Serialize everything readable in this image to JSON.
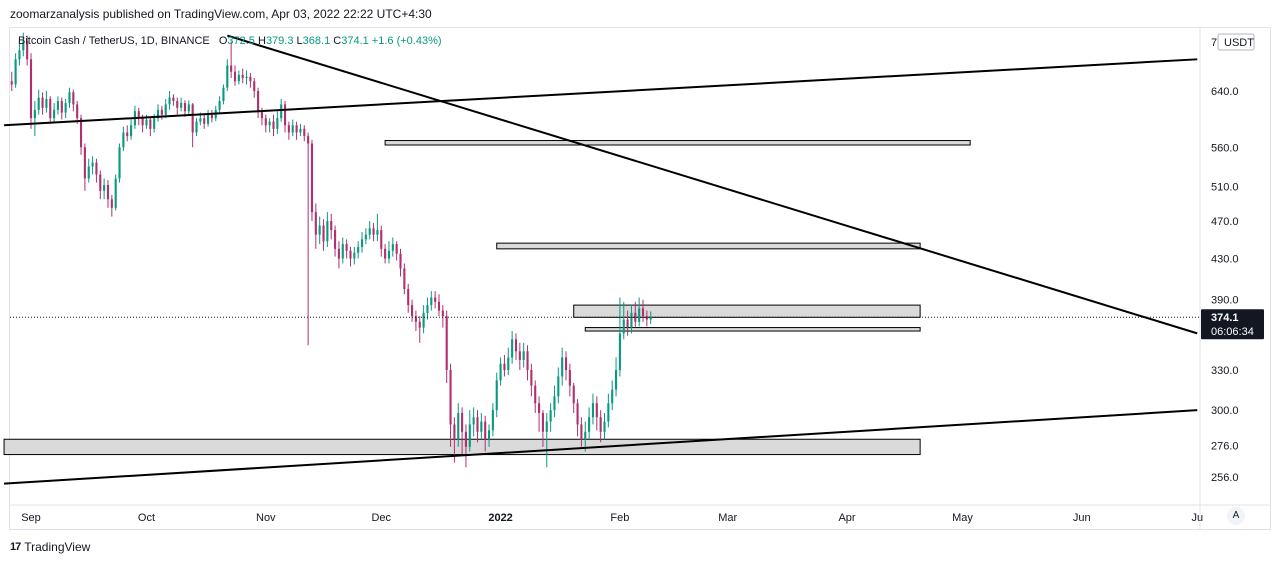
{
  "header": {
    "published_text": "zoomarzanalysis published on TradingView.com, Apr 03, 2022 22:22 UTC+4:30"
  },
  "legend": {
    "symbol": "Bitcoin Cash / TetherUS, 1D, BINANCE",
    "o_label": "O",
    "o_value": "372.5",
    "h_label": "H",
    "h_value": "379.3",
    "l_label": "L",
    "l_value": "368.1",
    "c_label": "C",
    "c_value": "374.1",
    "change": "+1.6 (+0.43%)"
  },
  "price_axis": {
    "currency": "USDT",
    "top_label": "7"
  },
  "price_tag": {
    "value": "374.1",
    "countdown": "06:06:34"
  },
  "footer": {
    "brand": "TradingView",
    "logo": "17"
  },
  "auto_button": "A",
  "colors": {
    "up": "#089981",
    "down": "#b0306e",
    "line": "#000000",
    "zone_fill": "#d6d6d6"
  },
  "chart_data": {
    "type": "candlestick",
    "title": "",
    "xlabel": "",
    "ylabel": "",
    "y_scale": "log",
    "ylim": [
      245,
      720
    ],
    "y_ticks": [
      640,
      560,
      510,
      470,
      430,
      390,
      330,
      300,
      276,
      256
    ],
    "y_tick_labels": [
      "640.0",
      "560.0",
      "510.0",
      "470.0",
      "430.0",
      "390.0",
      "330.0",
      "300.0",
      "276.0",
      "256.0"
    ],
    "x_range": [
      "2021-08-25",
      "2022-07-01"
    ],
    "x_ticks": [
      {
        "label": "Sep",
        "date": "2021-09-01"
      },
      {
        "label": "Oct",
        "date": "2021-10-01"
      },
      {
        "label": "Nov",
        "date": "2021-11-01"
      },
      {
        "label": "Dec",
        "date": "2021-12-01"
      },
      {
        "label": "2022",
        "date": "2022-01-01"
      },
      {
        "label": "Feb",
        "date": "2022-02-01"
      },
      {
        "label": "Mar",
        "date": "2022-03-01"
      },
      {
        "label": "Apr",
        "date": "2022-04-01"
      },
      {
        "label": "May",
        "date": "2022-05-01"
      },
      {
        "label": "Jun",
        "date": "2022-06-01"
      },
      {
        "label": "Ju",
        "date": "2022-07-01"
      }
    ],
    "last_price": 374.1,
    "candle_start": "2021-08-25",
    "candles": [
      [
        640,
        625,
        652,
        612
      ],
      [
        625,
        655,
        668,
        620
      ],
      [
        655,
        650,
        670,
        640
      ],
      [
        650,
        690,
        700,
        645
      ],
      [
        690,
        705,
        720,
        680
      ],
      [
        705,
        720,
        735,
        695
      ],
      [
        720,
        690,
        730,
        680
      ],
      [
        690,
        600,
        700,
        585
      ],
      [
        600,
        612,
        625,
        575
      ],
      [
        612,
        630,
        642,
        605
      ],
      [
        630,
        615,
        638,
        605
      ],
      [
        615,
        628,
        640,
        608
      ],
      [
        628,
        600,
        632,
        592
      ],
      [
        600,
        612,
        622,
        595
      ],
      [
        612,
        625,
        632,
        605
      ],
      [
        625,
        608,
        630,
        598
      ],
      [
        608,
        622,
        628,
        600
      ],
      [
        622,
        638,
        645,
        615
      ],
      [
        638,
        620,
        642,
        610
      ],
      [
        620,
        600,
        625,
        592
      ],
      [
        600,
        560,
        605,
        550
      ],
      [
        560,
        520,
        565,
        505
      ],
      [
        520,
        535,
        545,
        515
      ],
      [
        535,
        540,
        548,
        525
      ],
      [
        540,
        525,
        545,
        515
      ],
      [
        525,
        505,
        530,
        495
      ],
      [
        505,
        512,
        520,
        495
      ],
      [
        512,
        495,
        518,
        485
      ],
      [
        495,
        485,
        500,
        475
      ],
      [
        485,
        520,
        525,
        482
      ],
      [
        520,
        560,
        565,
        515
      ],
      [
        560,
        580,
        588,
        555
      ],
      [
        580,
        575,
        590,
        568
      ],
      [
        575,
        590,
        598,
        570
      ],
      [
        590,
        610,
        618,
        585
      ],
      [
        610,
        600,
        615,
        590
      ],
      [
        600,
        590,
        605,
        580
      ],
      [
        590,
        598,
        605,
        585
      ],
      [
        598,
        585,
        602,
        575
      ],
      [
        585,
        600,
        606,
        580
      ],
      [
        600,
        612,
        620,
        595
      ],
      [
        612,
        605,
        618,
        598
      ],
      [
        605,
        620,
        628,
        600
      ],
      [
        620,
        630,
        640,
        612
      ],
      [
        630,
        625,
        635,
        618
      ],
      [
        625,
        615,
        630,
        605
      ],
      [
        615,
        622,
        630,
        610
      ],
      [
        622,
        610,
        626,
        602
      ],
      [
        610,
        620,
        626,
        605
      ],
      [
        620,
        580,
        622,
        560
      ],
      [
        580,
        595,
        600,
        575
      ],
      [
        595,
        600,
        608,
        590
      ],
      [
        600,
        592,
        606,
        585
      ],
      [
        592,
        605,
        612,
        588
      ],
      [
        605,
        600,
        612,
        594
      ],
      [
        600,
        612,
        618,
        596
      ],
      [
        612,
        625,
        632,
        608
      ],
      [
        625,
        645,
        650,
        620
      ],
      [
        645,
        680,
        690,
        640
      ],
      [
        680,
        670,
        720,
        660
      ],
      [
        670,
        655,
        680,
        648
      ],
      [
        655,
        665,
        672,
        650
      ],
      [
        665,
        660,
        675,
        652
      ],
      [
        660,
        662,
        672,
        650
      ],
      [
        662,
        655,
        668,
        645
      ],
      [
        655,
        640,
        660,
        630
      ],
      [
        640,
        610,
        645,
        600
      ],
      [
        610,
        600,
        615,
        590
      ],
      [
        600,
        590,
        605,
        580
      ],
      [
        590,
        595,
        600,
        580
      ],
      [
        595,
        585,
        605,
        575
      ],
      [
        585,
        600,
        610,
        578
      ],
      [
        600,
        620,
        628,
        595
      ],
      [
        620,
        590,
        625,
        580
      ],
      [
        590,
        580,
        595,
        570
      ],
      [
        580,
        590,
        598,
        575
      ],
      [
        590,
        580,
        595,
        570
      ],
      [
        580,
        585,
        592,
        575
      ],
      [
        585,
        575,
        590,
        568
      ],
      [
        575,
        565,
        580,
        350
      ],
      [
        565,
        480,
        570,
        470
      ],
      [
        480,
        455,
        490,
        440
      ],
      [
        455,
        465,
        475,
        445
      ],
      [
        465,
        448,
        472,
        438
      ],
      [
        448,
        470,
        480,
        442
      ],
      [
        470,
        460,
        478,
        450
      ],
      [
        460,
        440,
        465,
        432
      ],
      [
        440,
        430,
        448,
        420
      ],
      [
        430,
        445,
        452,
        425
      ],
      [
        445,
        438,
        450,
        430
      ],
      [
        438,
        430,
        442,
        422
      ],
      [
        430,
        436,
        442,
        424
      ],
      [
        436,
        442,
        448,
        430
      ],
      [
        442,
        450,
        458,
        436
      ],
      [
        450,
        455,
        462,
        445
      ],
      [
        455,
        462,
        470,
        450
      ],
      [
        462,
        455,
        468,
        448
      ],
      [
        455,
        460,
        478,
        448
      ],
      [
        460,
        440,
        465,
        432
      ],
      [
        440,
        430,
        445,
        425
      ],
      [
        430,
        438,
        448,
        425
      ],
      [
        438,
        445,
        452,
        432
      ],
      [
        445,
        435,
        448,
        428
      ],
      [
        435,
        420,
        440,
        412
      ],
      [
        420,
        400,
        425,
        395
      ],
      [
        400,
        385,
        405,
        378
      ],
      [
        385,
        375,
        390,
        370
      ],
      [
        375,
        370,
        380,
        362
      ],
      [
        370,
        365,
        375,
        352
      ],
      [
        365,
        378,
        385,
        360
      ],
      [
        378,
        385,
        392,
        372
      ],
      [
        385,
        392,
        398,
        380
      ],
      [
        392,
        388,
        398,
        382
      ],
      [
        388,
        380,
        395,
        375
      ],
      [
        380,
        375,
        385,
        365
      ],
      [
        375,
        330,
        380,
        320
      ],
      [
        330,
        290,
        335,
        275
      ],
      [
        290,
        280,
        295,
        265
      ],
      [
        280,
        298,
        305,
        275
      ],
      [
        298,
        285,
        302,
        270
      ],
      [
        285,
        275,
        290,
        262
      ],
      [
        275,
        290,
        300,
        272
      ],
      [
        290,
        295,
        302,
        282
      ],
      [
        295,
        285,
        300,
        278
      ],
      [
        285,
        292,
        298,
        280
      ],
      [
        292,
        280,
        296,
        272
      ],
      [
        280,
        286,
        290,
        275
      ],
      [
        286,
        300,
        305,
        282
      ],
      [
        300,
        322,
        328,
        295
      ],
      [
        322,
        335,
        340,
        318
      ],
      [
        335,
        330,
        342,
        325
      ],
      [
        330,
        340,
        348,
        326
      ],
      [
        340,
        355,
        362,
        335
      ],
      [
        355,
        345,
        360,
        338
      ],
      [
        345,
        338,
        352,
        330
      ],
      [
        338,
        345,
        352,
        332
      ],
      [
        345,
        330,
        350,
        322
      ],
      [
        330,
        318,
        335,
        310
      ],
      [
        318,
        305,
        322,
        298
      ],
      [
        305,
        298,
        310,
        285
      ],
      [
        298,
        285,
        300,
        275
      ],
      [
        285,
        292,
        298,
        262
      ],
      [
        292,
        300,
        305,
        285
      ],
      [
        300,
        310,
        318,
        295
      ],
      [
        310,
        325,
        332,
        305
      ],
      [
        325,
        340,
        348,
        318
      ],
      [
        340,
        330,
        345,
        322
      ],
      [
        330,
        318,
        335,
        310
      ],
      [
        318,
        305,
        320,
        298
      ],
      [
        305,
        290,
        308,
        282
      ],
      [
        290,
        280,
        295,
        275
      ],
      [
        280,
        285,
        292,
        272
      ],
      [
        285,
        295,
        302,
        280
      ],
      [
        295,
        305,
        312,
        290
      ],
      [
        305,
        295,
        310,
        286
      ],
      [
        295,
        285,
        300,
        278
      ],
      [
        285,
        292,
        298,
        280
      ],
      [
        292,
        305,
        312,
        288
      ],
      [
        305,
        315,
        322,
        300
      ],
      [
        315,
        330,
        340,
        310
      ],
      [
        330,
        360,
        392,
        325
      ],
      [
        360,
        372,
        388,
        355
      ],
      [
        372,
        365,
        380,
        358
      ],
      [
        365,
        378,
        385,
        360
      ],
      [
        378,
        370,
        388,
        365
      ],
      [
        370,
        382,
        392,
        366
      ],
      [
        382,
        375,
        390,
        370
      ],
      [
        375,
        372,
        380,
        366
      ],
      [
        372,
        374.1,
        379.3,
        368.1
      ]
    ],
    "annotations": [
      {
        "type": "trendline",
        "from": [
          "2021-08-25",
          590
        ],
        "to": [
          "2022-07-01",
          690
        ]
      },
      {
        "type": "trendline",
        "from": [
          "2021-10-22",
          730
        ],
        "to": [
          "2022-07-01",
          360
        ]
      },
      {
        "type": "trendline",
        "from": [
          "2021-08-25",
          252
        ],
        "to": [
          "2022-07-01",
          300
        ]
      },
      {
        "type": "zone",
        "x0": "2021-12-02",
        "x1": "2022-05-03",
        "y0": 563,
        "y1": 569
      },
      {
        "type": "zone",
        "x0": "2021-12-31",
        "x1": "2022-04-20",
        "y0": 440,
        "y1": 446
      },
      {
        "type": "zone",
        "x0": "2022-01-20",
        "x1": "2022-04-20",
        "y0": 374,
        "y1": 385
      },
      {
        "type": "zone",
        "x0": "2022-01-23",
        "x1": "2022-04-20",
        "y0": 362,
        "y1": 365
      },
      {
        "type": "zone",
        "x0": "2021-08-25",
        "x1": "2022-04-20",
        "y0": 270,
        "y1": 280
      }
    ]
  }
}
